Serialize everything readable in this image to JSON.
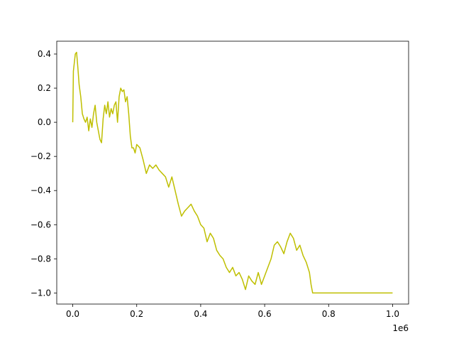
{
  "chart_data": {
    "type": "line",
    "title": "",
    "xlabel": "",
    "ylabel": "",
    "x_offset_text": "1e6",
    "xlim": [
      -50000,
      1050000
    ],
    "ylim": [
      -1.065,
      0.475
    ],
    "grid": false,
    "legend": "none",
    "x_ticks": [
      {
        "value": 0,
        "label": "0.0"
      },
      {
        "value": 200000,
        "label": "0.2"
      },
      {
        "value": 400000,
        "label": "0.4"
      },
      {
        "value": 600000,
        "label": "0.6"
      },
      {
        "value": 800000,
        "label": "0.8"
      },
      {
        "value": 1000000,
        "label": "1.0"
      }
    ],
    "y_ticks": [
      {
        "value": 0.4,
        "label": "0.4"
      },
      {
        "value": 0.2,
        "label": "0.2"
      },
      {
        "value": 0.0,
        "label": "0.0"
      },
      {
        "value": -0.2,
        "label": "−0.2"
      },
      {
        "value": -0.4,
        "label": "−0.4"
      },
      {
        "value": -0.6,
        "label": "−0.6"
      },
      {
        "value": -0.8,
        "label": "−0.8"
      },
      {
        "value": -1.0,
        "label": "−1.0"
      }
    ],
    "series": [
      {
        "color": "#bfbf00",
        "x": [
          0,
          2000,
          5000,
          8000,
          12000,
          16000,
          20000,
          25000,
          30000,
          35000,
          40000,
          45000,
          50000,
          55000,
          60000,
          65000,
          70000,
          75000,
          80000,
          85000,
          90000,
          95000,
          100000,
          105000,
          110000,
          115000,
          120000,
          125000,
          130000,
          135000,
          140000,
          145000,
          150000,
          155000,
          160000,
          165000,
          170000,
          175000,
          180000,
          185000,
          190000,
          195000,
          200000,
          210000,
          220000,
          230000,
          240000,
          250000,
          260000,
          270000,
          280000,
          290000,
          300000,
          310000,
          320000,
          330000,
          340000,
          350000,
          360000,
          370000,
          380000,
          390000,
          400000,
          410000,
          420000,
          430000,
          440000,
          450000,
          460000,
          470000,
          480000,
          490000,
          500000,
          510000,
          520000,
          530000,
          540000,
          550000,
          560000,
          570000,
          580000,
          590000,
          600000,
          610000,
          620000,
          630000,
          640000,
          650000,
          660000,
          670000,
          680000,
          690000,
          700000,
          710000,
          720000,
          730000,
          740000,
          745000,
          750000,
          760000,
          800000,
          900000,
          1000000
        ],
        "y": [
          0.0,
          0.3,
          0.35,
          0.4,
          0.41,
          0.32,
          0.22,
          0.15,
          0.05,
          0.02,
          0.0,
          0.03,
          -0.05,
          0.02,
          -0.03,
          0.05,
          0.1,
          0.0,
          -0.05,
          -0.1,
          -0.12,
          0.02,
          0.1,
          0.05,
          0.12,
          0.03,
          0.08,
          0.05,
          0.1,
          0.12,
          0.0,
          0.15,
          0.2,
          0.18,
          0.19,
          0.12,
          0.15,
          0.05,
          -0.08,
          -0.15,
          -0.15,
          -0.18,
          -0.13,
          -0.15,
          -0.22,
          -0.3,
          -0.25,
          -0.27,
          -0.25,
          -0.28,
          -0.3,
          -0.32,
          -0.38,
          -0.32,
          -0.4,
          -0.48,
          -0.55,
          -0.52,
          -0.5,
          -0.48,
          -0.52,
          -0.55,
          -0.6,
          -0.62,
          -0.7,
          -0.65,
          -0.68,
          -0.75,
          -0.78,
          -0.8,
          -0.85,
          -0.88,
          -0.85,
          -0.9,
          -0.88,
          -0.92,
          -0.98,
          -0.9,
          -0.93,
          -0.95,
          -0.88,
          -0.95,
          -0.9,
          -0.85,
          -0.8,
          -0.72,
          -0.7,
          -0.73,
          -0.77,
          -0.7,
          -0.65,
          -0.68,
          -0.75,
          -0.72,
          -0.78,
          -0.82,
          -0.88,
          -0.95,
          -1.0,
          -1.0,
          -1.0,
          -1.0,
          -1.0
        ]
      }
    ]
  }
}
